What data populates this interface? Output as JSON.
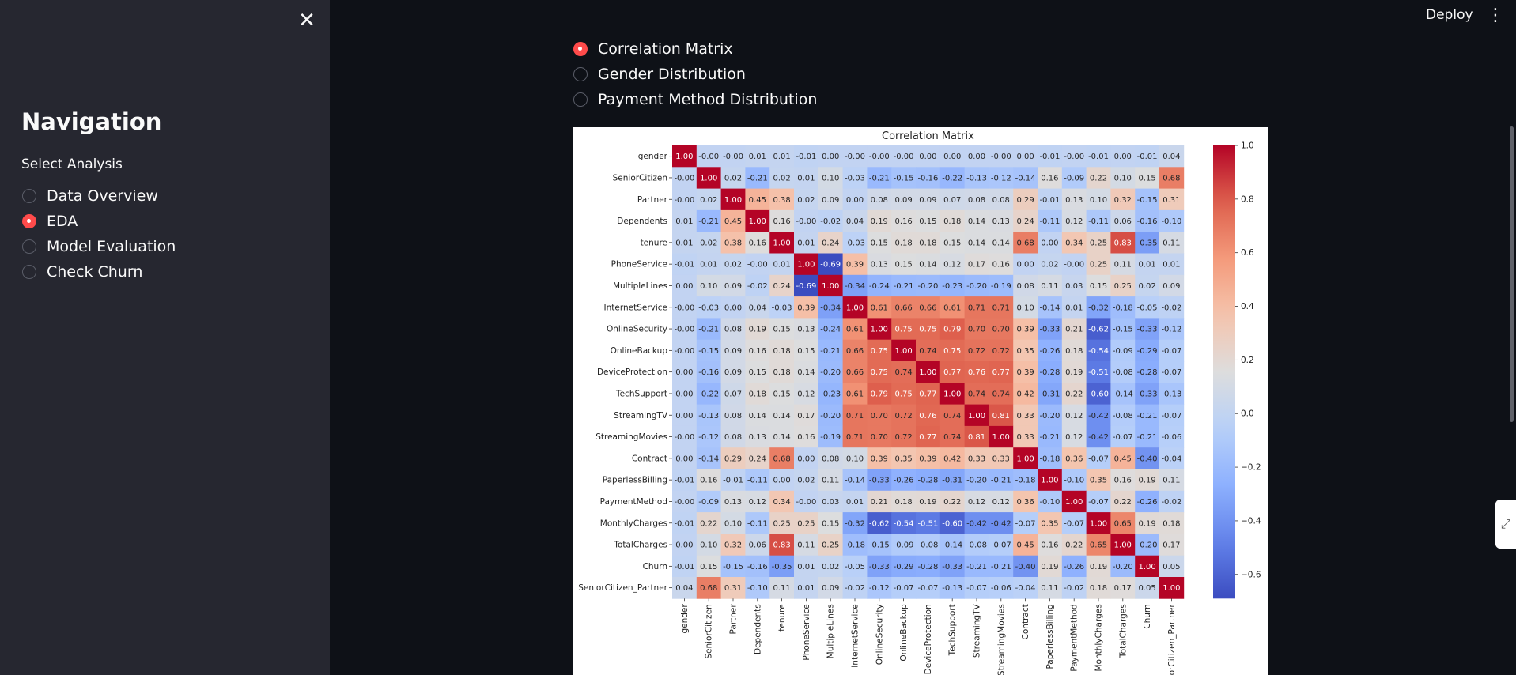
{
  "sidebar": {
    "close_icon": "close-icon",
    "title": "Navigation",
    "select_label": "Select Analysis",
    "options": [
      {
        "label": "Data Overview",
        "selected": false
      },
      {
        "label": "EDA",
        "selected": true
      },
      {
        "label": "Model Evaluation",
        "selected": false
      },
      {
        "label": "Check Churn",
        "selected": false
      }
    ]
  },
  "header": {
    "deploy_label": "Deploy",
    "menu_icon": "more-vert-icon"
  },
  "main": {
    "options": [
      {
        "label": "Correlation Matrix",
        "selected": true
      },
      {
        "label": "Gender Distribution",
        "selected": false
      },
      {
        "label": "Payment Method Distribution",
        "selected": false
      }
    ]
  },
  "colors": {
    "accent": "#ff4b4b",
    "sidebar_bg": "#262730",
    "app_bg": "#0e1117"
  },
  "chart_data": {
    "type": "heatmap",
    "title": "Correlation Matrix",
    "labels": [
      "gender",
      "SeniorCitizen",
      "Partner",
      "Dependents",
      "tenure",
      "PhoneService",
      "MultipleLines",
      "InternetService",
      "OnlineSecurity",
      "OnlineBackup",
      "DeviceProtection",
      "TechSupport",
      "StreamingTV",
      "StreamingMovies",
      "Contract",
      "PaperlessBilling",
      "PaymentMethod",
      "MonthlyCharges",
      "TotalCharges",
      "Churn",
      "SeniorCitizen_Partner"
    ],
    "x_tick_labels": [
      "gender",
      "SeniorCitizen",
      "Partner",
      "Dependents",
      "tenure",
      "PhoneService",
      "MultipleLines",
      "InternetService",
      "OnlineSecurity",
      "OnlineBackup",
      "DeviceProtection",
      "TechSupport",
      "StreamingTV",
      "StreamingMovies",
      "Contract",
      "PaperlessBilling",
      "PaymentMethod",
      "MonthlyCharges",
      "TotalCharges",
      "Churn",
      "orCitizen_Partner"
    ],
    "values": [
      [
        1.0,
        -0.0,
        -0.0,
        0.01,
        0.01,
        -0.01,
        0.0,
        -0.0,
        -0.0,
        -0.0,
        0.0,
        0.0,
        0.0,
        -0.0,
        0.0,
        -0.01,
        -0.0,
        -0.01,
        0.0,
        -0.01,
        0.04
      ],
      [
        -0.0,
        1.0,
        0.02,
        -0.21,
        0.02,
        0.01,
        0.1,
        -0.03,
        -0.21,
        -0.15,
        -0.16,
        -0.22,
        -0.13,
        -0.12,
        -0.14,
        0.16,
        -0.09,
        0.22,
        0.1,
        0.15,
        0.68
      ],
      [
        -0.0,
        0.02,
        1.0,
        0.45,
        0.38,
        0.02,
        0.09,
        0.0,
        0.08,
        0.09,
        0.09,
        0.07,
        0.08,
        0.08,
        0.29,
        -0.01,
        0.13,
        0.1,
        0.32,
        -0.15,
        0.31
      ],
      [
        0.01,
        -0.21,
        0.45,
        1.0,
        0.16,
        -0.0,
        -0.02,
        0.04,
        0.19,
        0.16,
        0.15,
        0.18,
        0.14,
        0.13,
        0.24,
        -0.11,
        0.12,
        -0.11,
        0.06,
        -0.16,
        -0.1
      ],
      [
        0.01,
        0.02,
        0.38,
        0.16,
        1.0,
        0.01,
        0.24,
        -0.03,
        0.15,
        0.18,
        0.18,
        0.15,
        0.14,
        0.14,
        0.68,
        0.0,
        0.34,
        0.25,
        0.83,
        -0.35,
        0.11
      ],
      [
        -0.01,
        0.01,
        0.02,
        -0.0,
        0.01,
        1.0,
        -0.69,
        0.39,
        0.13,
        0.15,
        0.14,
        0.12,
        0.17,
        0.16,
        0.0,
        0.02,
        -0.0,
        0.25,
        0.11,
        0.01,
        0.01
      ],
      [
        0.0,
        0.1,
        0.09,
        -0.02,
        0.24,
        -0.69,
        1.0,
        -0.34,
        -0.24,
        -0.21,
        -0.2,
        -0.23,
        -0.2,
        -0.19,
        0.08,
        0.11,
        0.03,
        0.15,
        0.25,
        0.02,
        0.09
      ],
      [
        -0.0,
        -0.03,
        0.0,
        0.04,
        -0.03,
        0.39,
        -0.34,
        1.0,
        0.61,
        0.66,
        0.66,
        0.61,
        0.71,
        0.71,
        0.1,
        -0.14,
        0.01,
        -0.32,
        -0.18,
        -0.05,
        -0.02
      ],
      [
        -0.0,
        -0.21,
        0.08,
        0.19,
        0.15,
        0.13,
        -0.24,
        0.61,
        1.0,
        0.75,
        0.75,
        0.79,
        0.7,
        0.7,
        0.39,
        -0.33,
        0.21,
        -0.62,
        -0.15,
        -0.33,
        -0.12
      ],
      [
        -0.0,
        -0.15,
        0.09,
        0.16,
        0.18,
        0.15,
        -0.21,
        0.66,
        0.75,
        1.0,
        0.74,
        0.75,
        0.72,
        0.72,
        0.35,
        -0.26,
        0.18,
        -0.54,
        -0.09,
        -0.29,
        -0.07
      ],
      [
        0.0,
        -0.16,
        0.09,
        0.15,
        0.18,
        0.14,
        -0.2,
        0.66,
        0.75,
        0.74,
        1.0,
        0.77,
        0.76,
        0.77,
        0.39,
        -0.28,
        0.19,
        -0.51,
        -0.08,
        -0.28,
        -0.07
      ],
      [
        0.0,
        -0.22,
        0.07,
        0.18,
        0.15,
        0.12,
        -0.23,
        0.61,
        0.79,
        0.75,
        0.77,
        1.0,
        0.74,
        0.74,
        0.42,
        -0.31,
        0.22,
        -0.6,
        -0.14,
        -0.33,
        -0.13
      ],
      [
        0.0,
        -0.13,
        0.08,
        0.14,
        0.14,
        0.17,
        -0.2,
        0.71,
        0.7,
        0.72,
        0.76,
        0.74,
        1.0,
        0.81,
        0.33,
        -0.2,
        0.12,
        -0.42,
        -0.08,
        -0.21,
        -0.07
      ],
      [
        -0.0,
        -0.12,
        0.08,
        0.13,
        0.14,
        0.16,
        -0.19,
        0.71,
        0.7,
        0.72,
        0.77,
        0.74,
        0.81,
        1.0,
        0.33,
        -0.21,
        0.12,
        -0.42,
        -0.07,
        -0.21,
        -0.06
      ],
      [
        0.0,
        -0.14,
        0.29,
        0.24,
        0.68,
        0.0,
        0.08,
        0.1,
        0.39,
        0.35,
        0.39,
        0.42,
        0.33,
        0.33,
        1.0,
        -0.18,
        0.36,
        -0.07,
        0.45,
        -0.4,
        -0.04
      ],
      [
        -0.01,
        0.16,
        -0.01,
        -0.11,
        0.0,
        0.02,
        0.11,
        -0.14,
        -0.33,
        -0.26,
        -0.28,
        -0.31,
        -0.2,
        -0.21,
        -0.18,
        1.0,
        -0.1,
        0.35,
        0.16,
        0.19,
        0.11
      ],
      [
        -0.0,
        -0.09,
        0.13,
        0.12,
        0.34,
        -0.0,
        0.03,
        0.01,
        0.21,
        0.18,
        0.19,
        0.22,
        0.12,
        0.12,
        0.36,
        -0.1,
        1.0,
        -0.07,
        0.22,
        -0.26,
        -0.02
      ],
      [
        -0.01,
        0.22,
        0.1,
        -0.11,
        0.25,
        0.25,
        0.15,
        -0.32,
        -0.62,
        -0.54,
        -0.51,
        -0.6,
        -0.42,
        -0.42,
        -0.07,
        0.35,
        -0.07,
        1.0,
        0.65,
        0.19,
        0.18
      ],
      [
        0.0,
        0.1,
        0.32,
        0.06,
        0.83,
        0.11,
        0.25,
        -0.18,
        -0.15,
        -0.09,
        -0.08,
        -0.14,
        -0.08,
        -0.07,
        0.45,
        0.16,
        0.22,
        0.65,
        1.0,
        -0.2,
        0.17
      ],
      [
        -0.01,
        0.15,
        -0.15,
        -0.16,
        -0.35,
        0.01,
        0.02,
        -0.05,
        -0.33,
        -0.29,
        -0.28,
        -0.33,
        -0.21,
        -0.21,
        -0.4,
        0.19,
        -0.26,
        0.19,
        -0.2,
        1.0,
        0.05
      ],
      [
        0.04,
        0.68,
        0.31,
        -0.1,
        0.11,
        0.01,
        0.09,
        -0.02,
        -0.12,
        -0.07,
        -0.07,
        -0.13,
        -0.07,
        -0.06,
        -0.04,
        0.11,
        -0.02,
        0.18,
        0.17,
        0.05,
        1.0
      ]
    ],
    "colorbar_ticks": [
      "1.0",
      "0.8",
      "0.6",
      "0.4",
      "0.2",
      "0.0",
      "−0.2",
      "−0.4",
      "−0.6"
    ],
    "colorbar_values": [
      1.0,
      0.8,
      0.6,
      0.4,
      0.2,
      0.0,
      -0.2,
      -0.4,
      -0.6
    ],
    "colormap": "coolwarm",
    "vmin": -0.69,
    "vmax": 1.0
  }
}
